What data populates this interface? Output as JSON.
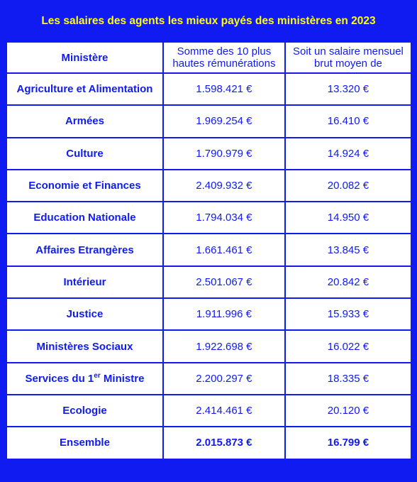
{
  "title": "Les salaires des agents les mieux payés des ministères en 2023",
  "headers": {
    "col1": "Ministère",
    "col2": "Somme des 10 plus hautes rémunérations",
    "col3": "Soit un salaire mensuel brut moyen de"
  },
  "rows": [
    {
      "ministere": "Agriculture et Alimentation",
      "somme": "1.598.421 €",
      "salaire": "13.320 €"
    },
    {
      "ministere": "Armées",
      "somme": "1.969.254 €",
      "salaire": "16.410 €"
    },
    {
      "ministere": "Culture",
      "somme": "1.790.979 €",
      "salaire": "14.924 €"
    },
    {
      "ministere": "Economie et Finances",
      "somme": "2.409.932 €",
      "salaire": "20.082 €"
    },
    {
      "ministere": "Education Nationale",
      "somme": "1.794.034 €",
      "salaire": "14.950 €"
    },
    {
      "ministere": "Affaires Etrangères",
      "somme": "1.661.461 €",
      "salaire": "13.845 €"
    },
    {
      "ministere": "Intérieur",
      "somme": "2.501.067 €",
      "salaire": "20.842 €"
    },
    {
      "ministere": "Justice",
      "somme": "1.911.996 €",
      "salaire": "15.933 €"
    },
    {
      "ministere": "Ministères Sociaux",
      "somme": "1.922.698 €",
      "salaire": "16.022 €"
    },
    {
      "ministere_prefix": "Services du 1",
      "ministere_sup": "er",
      "ministere_suffix": " Ministre",
      "somme": "2.200.297 €",
      "salaire": "18.335 €"
    },
    {
      "ministere": "Ecologie",
      "somme": "2.414.461 €",
      "salaire": "20.120 €"
    }
  ],
  "total": {
    "ministere": "Ensemble",
    "somme": "2.015.873 €",
    "salaire": "16.799 €"
  }
}
